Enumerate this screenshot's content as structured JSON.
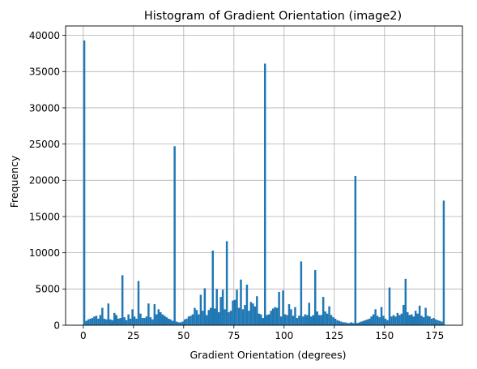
{
  "chart_data": {
    "type": "bar",
    "title": "Histogram of Gradient Orientation (image2)",
    "xlabel": "Gradient Orientation (degrees)",
    "ylabel": "Frequency",
    "xlim": [
      -8.8,
      188.8
    ],
    "ylim": [
      0,
      41300
    ],
    "xticks": [
      0,
      25,
      50,
      75,
      100,
      125,
      150,
      175
    ],
    "yticks": [
      0,
      5000,
      10000,
      15000,
      20000,
      25000,
      30000,
      35000,
      40000
    ],
    "grid": true,
    "bar_color": "#1f77b4",
    "bin_width": 1,
    "bins": [
      [
        0,
        39300
      ],
      [
        1,
        600
      ],
      [
        2,
        800
      ],
      [
        3,
        900
      ],
      [
        4,
        1000
      ],
      [
        5,
        1200
      ],
      [
        6,
        1300
      ],
      [
        7,
        900
      ],
      [
        8,
        1400
      ],
      [
        9,
        2400
      ],
      [
        10,
        900
      ],
      [
        11,
        800
      ],
      [
        12,
        3000
      ],
      [
        13,
        800
      ],
      [
        14,
        700
      ],
      [
        15,
        1700
      ],
      [
        16,
        1400
      ],
      [
        17,
        900
      ],
      [
        18,
        1000
      ],
      [
        19,
        6900
      ],
      [
        20,
        1100
      ],
      [
        21,
        700
      ],
      [
        22,
        1500
      ],
      [
        23,
        900
      ],
      [
        24,
        2200
      ],
      [
        25,
        1200
      ],
      [
        26,
        900
      ],
      [
        27,
        6100
      ],
      [
        28,
        1600
      ],
      [
        29,
        1000
      ],
      [
        30,
        1000
      ],
      [
        31,
        1200
      ],
      [
        32,
        3000
      ],
      [
        33,
        1100
      ],
      [
        34,
        800
      ],
      [
        35,
        2900
      ],
      [
        36,
        1500
      ],
      [
        37,
        2200
      ],
      [
        38,
        1800
      ],
      [
        39,
        1500
      ],
      [
        40,
        1300
      ],
      [
        41,
        1100
      ],
      [
        42,
        900
      ],
      [
        43,
        800
      ],
      [
        44,
        600
      ],
      [
        45,
        24700
      ],
      [
        46,
        500
      ],
      [
        47,
        400
      ],
      [
        48,
        400
      ],
      [
        49,
        500
      ],
      [
        50,
        800
      ],
      [
        51,
        900
      ],
      [
        52,
        1200
      ],
      [
        53,
        1300
      ],
      [
        54,
        1500
      ],
      [
        55,
        2400
      ],
      [
        56,
        2100
      ],
      [
        57,
        1500
      ],
      [
        58,
        4200
      ],
      [
        59,
        2000
      ],
      [
        60,
        5100
      ],
      [
        61,
        1400
      ],
      [
        62,
        2100
      ],
      [
        63,
        2400
      ],
      [
        64,
        10300
      ],
      [
        65,
        2300
      ],
      [
        66,
        5000
      ],
      [
        67,
        1800
      ],
      [
        68,
        3900
      ],
      [
        69,
        4900
      ],
      [
        70,
        2200
      ],
      [
        71,
        11600
      ],
      [
        72,
        1800
      ],
      [
        73,
        2000
      ],
      [
        74,
        3400
      ],
      [
        75,
        3500
      ],
      [
        76,
        4900
      ],
      [
        77,
        2400
      ],
      [
        78,
        6300
      ],
      [
        79,
        2200
      ],
      [
        80,
        2800
      ],
      [
        81,
        5600
      ],
      [
        82,
        2000
      ],
      [
        83,
        3200
      ],
      [
        84,
        3000
      ],
      [
        85,
        2600
      ],
      [
        86,
        4000
      ],
      [
        87,
        1600
      ],
      [
        88,
        1500
      ],
      [
        89,
        1000
      ],
      [
        90,
        36100
      ],
      [
        91,
        1400
      ],
      [
        92,
        1500
      ],
      [
        93,
        2000
      ],
      [
        94,
        2300
      ],
      [
        95,
        2500
      ],
      [
        96,
        2400
      ],
      [
        97,
        4600
      ],
      [
        98,
        1200
      ],
      [
        99,
        4800
      ],
      [
        100,
        1500
      ],
      [
        101,
        1400
      ],
      [
        102,
        2900
      ],
      [
        103,
        2200
      ],
      [
        104,
        1300
      ],
      [
        105,
        2500
      ],
      [
        106,
        1000
      ],
      [
        107,
        1300
      ],
      [
        108,
        8800
      ],
      [
        109,
        1200
      ],
      [
        110,
        1500
      ],
      [
        111,
        1400
      ],
      [
        112,
        3100
      ],
      [
        113,
        1200
      ],
      [
        114,
        1400
      ],
      [
        115,
        7600
      ],
      [
        116,
        1900
      ],
      [
        117,
        1400
      ],
      [
        118,
        1400
      ],
      [
        119,
        3900
      ],
      [
        120,
        1900
      ],
      [
        121,
        1600
      ],
      [
        122,
        2600
      ],
      [
        123,
        1400
      ],
      [
        124,
        1100
      ],
      [
        125,
        900
      ],
      [
        126,
        700
      ],
      [
        127,
        600
      ],
      [
        128,
        500
      ],
      [
        129,
        400
      ],
      [
        130,
        400
      ],
      [
        131,
        300
      ],
      [
        132,
        300
      ],
      [
        133,
        400
      ],
      [
        134,
        300
      ],
      [
        135,
        20600
      ],
      [
        136,
        300
      ],
      [
        137,
        400
      ],
      [
        138,
        500
      ],
      [
        139,
        600
      ],
      [
        140,
        700
      ],
      [
        141,
        800
      ],
      [
        142,
        900
      ],
      [
        143,
        1200
      ],
      [
        144,
        1500
      ],
      [
        145,
        2200
      ],
      [
        146,
        1300
      ],
      [
        147,
        1100
      ],
      [
        148,
        2500
      ],
      [
        149,
        1300
      ],
      [
        150,
        900
      ],
      [
        151,
        700
      ],
      [
        152,
        5200
      ],
      [
        153,
        1200
      ],
      [
        154,
        1400
      ],
      [
        155,
        1200
      ],
      [
        156,
        1700
      ],
      [
        157,
        1400
      ],
      [
        158,
        1600
      ],
      [
        159,
        2800
      ],
      [
        160,
        6400
      ],
      [
        161,
        1800
      ],
      [
        162,
        1400
      ],
      [
        163,
        1500
      ],
      [
        164,
        1200
      ],
      [
        165,
        2000
      ],
      [
        166,
        1600
      ],
      [
        167,
        2700
      ],
      [
        168,
        1300
      ],
      [
        169,
        1100
      ],
      [
        170,
        2400
      ],
      [
        171,
        1300
      ],
      [
        172,
        1200
      ],
      [
        173,
        900
      ],
      [
        174,
        1000
      ],
      [
        175,
        800
      ],
      [
        176,
        700
      ],
      [
        177,
        600
      ],
      [
        178,
        500
      ],
      [
        179,
        17200
      ]
    ]
  }
}
